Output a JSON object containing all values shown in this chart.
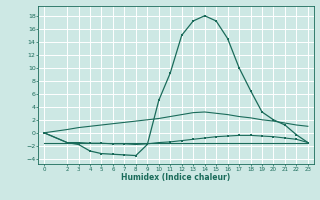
{
  "xlabel": "Humidex (Indice chaleur)",
  "bg_color": "#cde8e4",
  "grid_color": "#ffffff",
  "line_color": "#1a6b5a",
  "xlim": [
    -0.5,
    23.5
  ],
  "ylim": [
    -4.8,
    19.5
  ],
  "yticks": [
    -4,
    -2,
    0,
    2,
    4,
    6,
    8,
    10,
    12,
    14,
    16,
    18
  ],
  "xticks": [
    0,
    2,
    3,
    4,
    5,
    6,
    7,
    8,
    9,
    10,
    11,
    12,
    13,
    14,
    15,
    16,
    17,
    18,
    19,
    20,
    21,
    22,
    23
  ],
  "series": [
    {
      "x": [
        0,
        2,
        3,
        4,
        5,
        6,
        7,
        8,
        9,
        10,
        11,
        12,
        13,
        14,
        15,
        16,
        17,
        18,
        19,
        20,
        21,
        22,
        23
      ],
      "y": [
        0,
        -1.5,
        -1.8,
        -2.8,
        -3.2,
        -3.3,
        -3.4,
        -3.5,
        -1.8,
        5.0,
        9.2,
        15.0,
        17.2,
        18.0,
        17.2,
        14.5,
        10.0,
        6.5,
        3.2,
        2.0,
        1.2,
        -0.3,
        -1.5
      ],
      "markers": true,
      "lw": 0.9
    },
    {
      "x": [
        0,
        2,
        3,
        4,
        5,
        6,
        7,
        8,
        9,
        10,
        11,
        12,
        13,
        14,
        15,
        16,
        17,
        18,
        19,
        20,
        21,
        22,
        23
      ],
      "y": [
        0,
        -1.5,
        -1.5,
        -1.6,
        -1.6,
        -1.7,
        -1.7,
        -1.8,
        -1.7,
        -1.5,
        -1.4,
        -1.2,
        -1.0,
        -0.8,
        -0.6,
        -0.5,
        -0.4,
        -0.4,
        -0.5,
        -0.6,
        -0.8,
        -1.0,
        -1.5
      ],
      "markers": true,
      "lw": 0.8
    },
    {
      "x": [
        0,
        2,
        3,
        4,
        5,
        6,
        7,
        8,
        9,
        10,
        11,
        12,
        13,
        14,
        15,
        16,
        17,
        18,
        19,
        20,
        21,
        22,
        23
      ],
      "y": [
        0,
        0.5,
        0.8,
        1.0,
        1.2,
        1.4,
        1.6,
        1.8,
        2.0,
        2.2,
        2.5,
        2.8,
        3.1,
        3.2,
        3.0,
        2.8,
        2.5,
        2.3,
        2.0,
        1.8,
        1.5,
        1.2,
        1.0
      ],
      "markers": false,
      "lw": 0.8
    },
    {
      "x": [
        0,
        23
      ],
      "y": [
        -1.5,
        -1.5
      ],
      "markers": false,
      "lw": 0.8
    }
  ]
}
